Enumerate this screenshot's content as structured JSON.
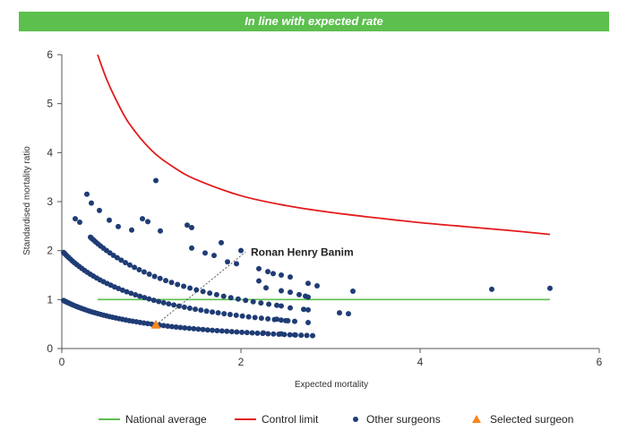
{
  "banner": {
    "text": "In line with expected rate"
  },
  "colors": {
    "banner_bg": "#5cbf4e",
    "national": "#5cbf4e",
    "control": "#e31a1c",
    "surgeons": "#1f3c75",
    "selected": "#f5871f"
  },
  "chart_data": {
    "type": "scatter",
    "title": "",
    "xlabel": "Expected mortality",
    "ylabel": "Standardised mortality ratio",
    "xlim": [
      0,
      6
    ],
    "ylim": [
      0,
      6
    ],
    "xticks": [
      0,
      2,
      4,
      6
    ],
    "yticks": [
      0,
      1,
      2,
      3,
      4,
      5,
      6
    ],
    "grid": false,
    "legend_position": "bottom",
    "legend": [
      {
        "label": "National average",
        "kind": "line",
        "color": "#5cbf4e"
      },
      {
        "label": "Control limit",
        "kind": "line",
        "color": "#e31a1c"
      },
      {
        "label": "Other surgeons",
        "kind": "dot",
        "color": "#1f3c75"
      },
      {
        "label": "Selected surgeon",
        "kind": "triangle",
        "color": "#f5871f"
      }
    ],
    "national_average": {
      "y": 1,
      "x_range": [
        0.4,
        5.45
      ]
    },
    "control_limit": {
      "x": [
        0.4,
        0.5,
        0.6,
        0.75,
        1.0,
        1.25,
        1.5,
        2.0,
        2.5,
        3.0,
        3.5,
        4.0,
        4.5,
        5.0,
        5.45
      ],
      "y": [
        6.0,
        5.5,
        5.1,
        4.6,
        4.05,
        3.7,
        3.45,
        3.12,
        2.92,
        2.78,
        2.67,
        2.57,
        2.49,
        2.41,
        2.33
      ]
    },
    "selected_surgeon": {
      "name": "Ronan Henry Banim",
      "x": 1.05,
      "y": 0.48,
      "label_anchor": {
        "x": 2.05,
        "y": 1.97
      }
    },
    "other_surgeons": {
      "curves": [
        {
          "deaths": 1,
          "x_start": 0.02,
          "x_end": 2.8,
          "count": 70
        },
        {
          "deaths": 2,
          "x_start": 0.02,
          "x_end": 2.6,
          "count": 55
        },
        {
          "deaths": 3,
          "x_start": 0.32,
          "x_end": 2.4,
          "count": 38
        }
      ],
      "extra_points": [
        [
          1.05,
          3.43
        ],
        [
          0.28,
          3.15
        ],
        [
          0.33,
          2.97
        ],
        [
          0.42,
          2.82
        ],
        [
          0.15,
          2.65
        ],
        [
          0.2,
          2.58
        ],
        [
          0.53,
          2.62
        ],
        [
          0.63,
          2.49
        ],
        [
          0.78,
          2.42
        ],
        [
          0.9,
          2.65
        ],
        [
          0.96,
          2.59
        ],
        [
          1.1,
          2.4
        ],
        [
          1.4,
          2.52
        ],
        [
          1.45,
          2.47
        ],
        [
          1.78,
          2.16
        ],
        [
          2.0,
          2.0
        ],
        [
          1.45,
          2.05
        ],
        [
          1.6,
          1.95
        ],
        [
          1.7,
          1.9
        ],
        [
          1.85,
          1.77
        ],
        [
          1.95,
          1.73
        ],
        [
          2.2,
          1.63
        ],
        [
          2.3,
          1.57
        ],
        [
          2.36,
          1.53
        ],
        [
          2.45,
          1.5
        ],
        [
          2.55,
          1.46
        ],
        [
          2.2,
          1.38
        ],
        [
          2.28,
          1.24
        ],
        [
          2.45,
          1.18
        ],
        [
          2.55,
          1.15
        ],
        [
          2.65,
          1.1
        ],
        [
          2.72,
          1.07
        ],
        [
          2.75,
          1.33
        ],
        [
          2.85,
          1.28
        ],
        [
          2.75,
          1.05
        ],
        [
          3.25,
          1.17
        ],
        [
          2.45,
          0.87
        ],
        [
          2.55,
          0.83
        ],
        [
          2.7,
          0.8
        ],
        [
          2.75,
          0.79
        ],
        [
          3.1,
          0.73
        ],
        [
          3.2,
          0.71
        ],
        [
          2.4,
          0.6
        ],
        [
          2.5,
          0.57
        ],
        [
          2.75,
          0.53
        ],
        [
          2.6,
          0.28
        ],
        [
          2.45,
          0.3
        ],
        [
          2.25,
          0.32
        ],
        [
          4.8,
          1.21
        ],
        [
          5.45,
          1.23
        ]
      ]
    }
  }
}
